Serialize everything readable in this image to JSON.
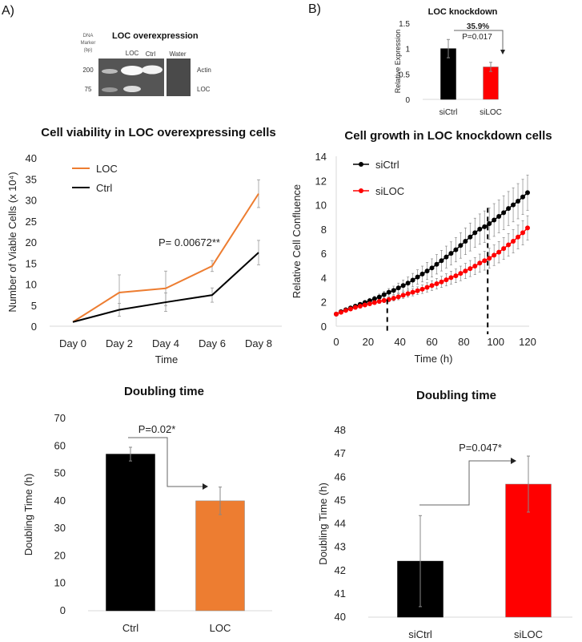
{
  "panels": {
    "a_label": "A)",
    "b_label": "B)"
  },
  "gel": {
    "title": "LOC overexpression",
    "marker_label_lines": [
      "DNA",
      "Marker",
      "(bp)"
    ],
    "lane_labels": [
      "LOC",
      "Ctrl",
      "Water"
    ],
    "size_labels": [
      "200",
      "75"
    ],
    "band_labels": [
      "Actin",
      "LOC"
    ]
  },
  "chart_data": [
    {
      "id": "knockdown",
      "type": "bar",
      "title": "LOC knockdown",
      "xlabel": "",
      "ylabel": "Relative Expression",
      "categories": [
        "siCtrl",
        "siLOC"
      ],
      "values": [
        1.0,
        0.64
      ],
      "errors": [
        0.18,
        0.09
      ],
      "colors": [
        "#000000",
        "#FF0000"
      ],
      "ylim": [
        0,
        1.5
      ],
      "yticks": [
        "0",
        "0.5",
        "1",
        "1.5"
      ],
      "yticks_values": [
        0,
        0.5,
        1,
        1.5
      ],
      "annotations": [
        "35.9%",
        "P=0.017"
      ],
      "grid": false
    },
    {
      "id": "viability",
      "type": "line",
      "title": "Cell viability in LOC overexpressing cells",
      "xlabel": "Time",
      "ylabel": "Number of Viable Cells (x 10⁴)",
      "categories": [
        "Day 0",
        "Day 2",
        "Day 4",
        "Day 6",
        "Day 8"
      ],
      "series": [
        {
          "name": "LOC",
          "color": "#ED7D31",
          "values": [
            1,
            8,
            9,
            14.3,
            31.5
          ],
          "errors": [
            0,
            4.2,
            4.1,
            1.3,
            3.3
          ]
        },
        {
          "name": "Ctrl",
          "color": "#000000",
          "values": [
            1,
            3.9,
            5.7,
            7.4,
            17.5
          ],
          "errors": [
            0,
            1.5,
            2.2,
            1.7,
            2.9
          ]
        }
      ],
      "ylim": [
        0,
        40
      ],
      "yticks": [
        "0",
        "5",
        "10",
        "15",
        "20",
        "25",
        "30",
        "35",
        "40"
      ],
      "annotations": [
        "P= 0.00672**"
      ],
      "legend": "top-left",
      "grid": false
    },
    {
      "id": "growth",
      "type": "line",
      "title": "Cell growth in LOC knockdown cells",
      "xlabel": "Time (h)",
      "ylabel": "Relative Cell Confluence",
      "x": [
        0,
        3,
        6,
        9,
        12,
        15,
        18,
        21,
        24,
        27,
        30,
        33,
        36,
        39,
        42,
        45,
        48,
        51,
        54,
        57,
        60,
        63,
        66,
        69,
        72,
        75,
        78,
        81,
        84,
        87,
        90,
        93,
        96,
        99,
        102,
        105,
        108,
        111,
        114,
        117,
        120
      ],
      "series": [
        {
          "name": "siCtrl",
          "color": "#000000",
          "values": [
            1.0,
            1.2,
            1.35,
            1.5,
            1.65,
            1.8,
            1.95,
            2.1,
            2.25,
            2.4,
            2.6,
            2.8,
            2.95,
            3.15,
            3.35,
            3.55,
            3.8,
            4.05,
            4.3,
            4.55,
            4.8,
            5.1,
            5.4,
            5.7,
            6.0,
            6.3,
            6.65,
            7.0,
            7.35,
            7.7,
            8.0,
            8.2,
            8.45,
            8.75,
            9.05,
            9.35,
            9.7,
            10.0,
            10.3,
            10.65,
            11.0
          ],
          "errors": [
            0,
            0.05,
            0.08,
            0.1,
            0.12,
            0.15,
            0.18,
            0.2,
            0.22,
            0.25,
            0.28,
            0.3,
            0.35,
            0.4,
            0.45,
            0.5,
            0.55,
            0.6,
            0.65,
            0.7,
            0.75,
            0.8,
            0.85,
            0.9,
            0.95,
            1.0,
            1.05,
            1.1,
            1.15,
            1.2,
            1.25,
            1.3,
            1.3,
            1.35,
            1.35,
            1.4,
            1.4,
            1.4,
            1.45,
            1.45,
            1.45
          ]
        },
        {
          "name": "siLOC",
          "color": "#FF0000",
          "values": [
            1.0,
            1.15,
            1.3,
            1.42,
            1.55,
            1.65,
            1.75,
            1.85,
            1.95,
            2.05,
            2.12,
            2.2,
            2.3,
            2.42,
            2.55,
            2.68,
            2.8,
            2.92,
            3.05,
            3.2,
            3.35,
            3.5,
            3.65,
            3.82,
            4.0,
            4.15,
            4.35,
            4.55,
            4.75,
            4.95,
            5.2,
            5.4,
            5.6,
            5.85,
            6.1,
            6.4,
            6.7,
            7.0,
            7.35,
            7.7,
            8.1
          ],
          "errors": [
            0,
            0.05,
            0.07,
            0.08,
            0.1,
            0.11,
            0.12,
            0.14,
            0.15,
            0.17,
            0.18,
            0.2,
            0.22,
            0.24,
            0.26,
            0.28,
            0.3,
            0.32,
            0.35,
            0.38,
            0.4,
            0.43,
            0.46,
            0.5,
            0.53,
            0.56,
            0.6,
            0.63,
            0.66,
            0.7,
            0.74,
            0.78,
            0.82,
            0.85,
            0.88,
            0.9,
            0.93,
            0.96,
            0.98,
            1.0,
            1.0
          ]
        }
      ],
      "dashed_markers_x": [
        32,
        95
      ],
      "xlim": [
        0,
        120
      ],
      "xticks": [
        "0",
        "20",
        "40",
        "60",
        "80",
        "100",
        "120"
      ],
      "ylim": [
        0,
        14
      ],
      "yticks": [
        "0",
        "2",
        "4",
        "6",
        "8",
        "10",
        "12",
        "14"
      ],
      "legend": "top-left",
      "grid": false
    },
    {
      "id": "doubling_a",
      "type": "bar",
      "title": "Doubling time",
      "xlabel": "",
      "ylabel": "Doubling Time (h)",
      "categories": [
        "Ctrl",
        "LOC"
      ],
      "values": [
        57,
        40
      ],
      "errors": [
        2.5,
        5
      ],
      "colors": [
        "#000000",
        "#ED7D31"
      ],
      "ylim": [
        0,
        70
      ],
      "yticks": [
        "0",
        "10",
        "20",
        "30",
        "40",
        "50",
        "60",
        "70"
      ],
      "annotations": [
        "P=0.02*"
      ],
      "grid": false
    },
    {
      "id": "doubling_b",
      "type": "bar",
      "title": "Doubling time",
      "xlabel": "",
      "ylabel": "Doubling Time (h)",
      "categories": [
        "siCtrl",
        "siLOC"
      ],
      "values": [
        42.4,
        45.7
      ],
      "errors": [
        1.95,
        1.2
      ],
      "colors": [
        "#000000",
        "#FF0000"
      ],
      "ylim": [
        40,
        48
      ],
      "yticks": [
        "40",
        "41",
        "42",
        "43",
        "44",
        "45",
        "46",
        "47",
        "48"
      ],
      "annotations": [
        "P=0.047*"
      ],
      "grid": false
    }
  ]
}
